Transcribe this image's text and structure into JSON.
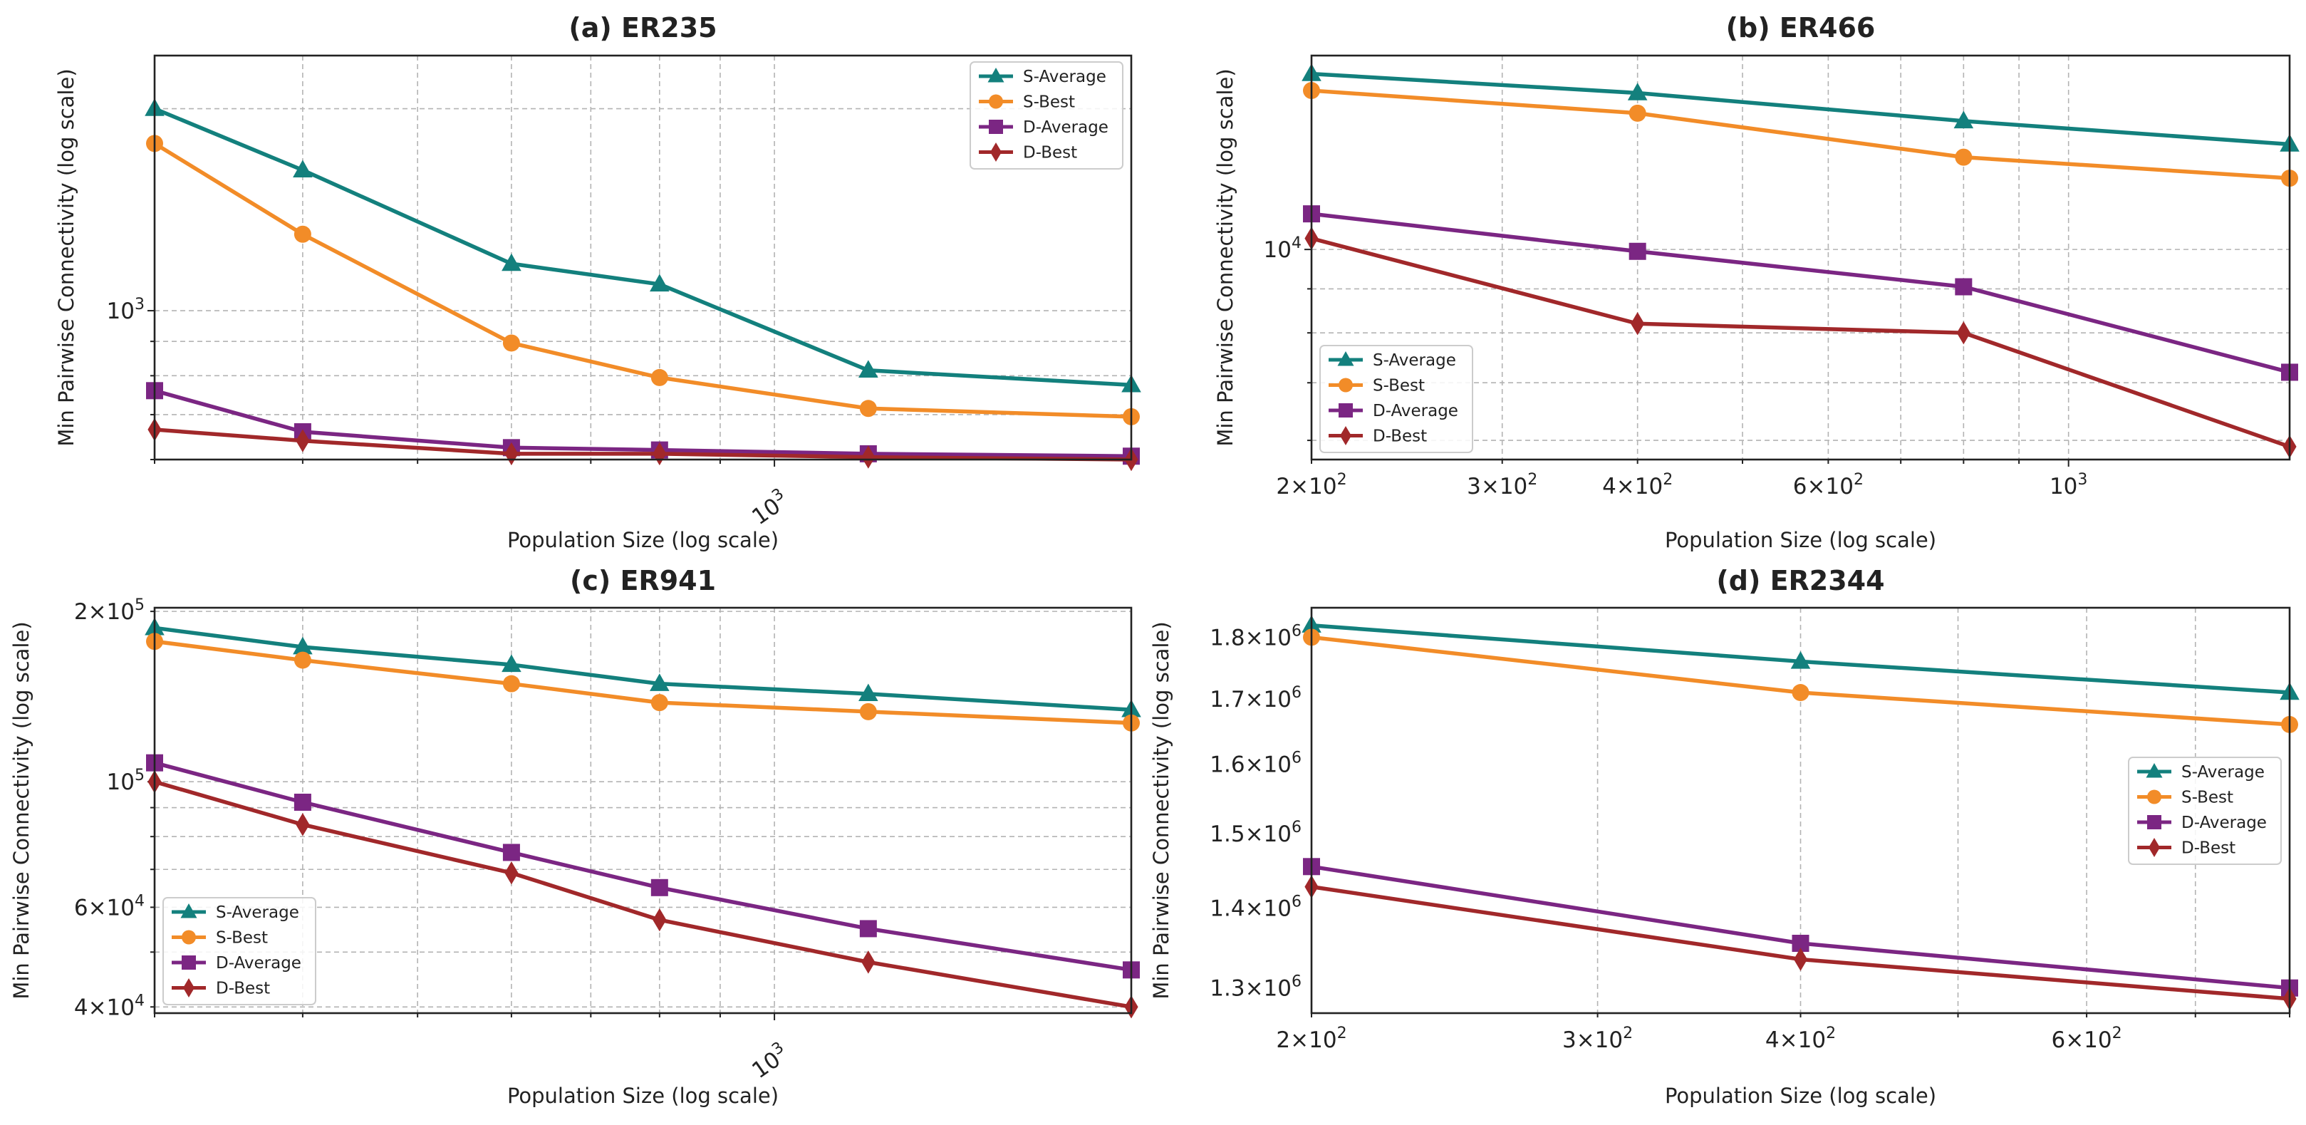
{
  "colors": {
    "S-Average": "#13807d",
    "S-Best": "#f28c28",
    "D-Average": "#7b2683",
    "D-Best": "#a1282a"
  },
  "chart_data": [
    {
      "type": "line",
      "title": "(a) ER235",
      "xlabel": "Population Size (log scale)",
      "ylabel": "Min Pairwise Connectivity (log scale)",
      "xscale": "log",
      "yscale": "log",
      "xlim": [
        300,
        2000
      ],
      "ylim": [
        600,
        2400
      ],
      "grid": true,
      "legend": "top-right",
      "x": [
        300,
        400,
        600,
        800,
        1200,
        2000
      ],
      "series": [
        {
          "name": "S-Average",
          "marker": "triangle",
          "values": [
            2000,
            1620,
            1175,
            1095,
            815,
            775
          ]
        },
        {
          "name": "S-Best",
          "marker": "circle",
          "values": [
            1775,
            1300,
            895,
            795,
            715,
            695
          ]
        },
        {
          "name": "D-Average",
          "marker": "square",
          "values": [
            760,
            660,
            625,
            620,
            612,
            607
          ]
        },
        {
          "name": "D-Best",
          "marker": "diamond",
          "values": [
            665,
            640,
            612,
            612,
            605,
            600
          ]
        }
      ],
      "xticks": [
        {
          "value": 1000,
          "base": "10",
          "exp": "3"
        }
      ],
      "yticks": [
        {
          "value": 1000,
          "base": "10",
          "exp": "3"
        }
      ]
    },
    {
      "type": "line",
      "title": "(b) ER466",
      "xlabel": "Population Size (log scale)",
      "ylabel": "Min Pairwise Connectivity (log scale)",
      "xscale": "log",
      "yscale": "log",
      "xlim": [
        200,
        1600
      ],
      "ylim": [
        5700,
        16800
      ],
      "grid": true,
      "legend": "bottom-left",
      "x": [
        200,
        400,
        800,
        1600
      ],
      "series": [
        {
          "name": "S-Average",
          "marker": "triangle",
          "values": [
            16000,
            15200,
            14100,
            13250
          ]
        },
        {
          "name": "S-Best",
          "marker": "circle",
          "values": [
            15300,
            14400,
            12800,
            12100
          ]
        },
        {
          "name": "D-Average",
          "marker": "square",
          "values": [
            11000,
            9950,
            9050,
            7200
          ]
        },
        {
          "name": "D-Best",
          "marker": "diamond",
          "values": [
            10300,
            8200,
            8000,
            5900
          ]
        }
      ],
      "xticks": [
        {
          "value": 200,
          "mant": "2",
          "base": "10",
          "exp": "2"
        },
        {
          "value": 300,
          "mant": "3",
          "base": "10",
          "exp": "2"
        },
        {
          "value": 400,
          "mant": "4",
          "base": "10",
          "exp": "2"
        },
        {
          "value": 600,
          "mant": "6",
          "base": "10",
          "exp": "2"
        },
        {
          "value": 1000,
          "base": "10",
          "exp": "3"
        }
      ],
      "yticks": [
        {
          "value": 10000,
          "base": "10",
          "exp": "4"
        }
      ]
    },
    {
      "type": "line",
      "title": "(c) ER941",
      "xlabel": "Population Size (log scale)",
      "ylabel": "Min Pairwise Connectivity (log scale)",
      "xscale": "log",
      "yscale": "log",
      "xlim": [
        300,
        2000
      ],
      "ylim": [
        39000,
        203000
      ],
      "grid": true,
      "legend": "bottom-left",
      "x": [
        300,
        400,
        600,
        800,
        1200,
        2000
      ],
      "series": [
        {
          "name": "S-Average",
          "marker": "triangle",
          "values": [
            187000,
            173000,
            161000,
            149000,
            143000,
            134000
          ]
        },
        {
          "name": "S-Best",
          "marker": "circle",
          "values": [
            177000,
            164000,
            149000,
            138000,
            133000,
            127000
          ]
        },
        {
          "name": "D-Average",
          "marker": "square",
          "values": [
            108000,
            92000,
            75000,
            65000,
            55000,
            46500
          ]
        },
        {
          "name": "D-Best",
          "marker": "diamond",
          "values": [
            100000,
            84000,
            69000,
            57000,
            48000,
            40000
          ]
        }
      ],
      "xticks": [
        {
          "value": 1000,
          "base": "10",
          "exp": "3"
        }
      ],
      "yticks": [
        {
          "value": 200000,
          "mant": "2",
          "base": "10",
          "exp": "5"
        },
        {
          "value": 100000,
          "base": "10",
          "exp": "5"
        },
        {
          "value": 60000,
          "mant": "6",
          "base": "10",
          "exp": "4"
        },
        {
          "value": 40000,
          "mant": "4",
          "base": "10",
          "exp": "4"
        }
      ]
    },
    {
      "type": "line",
      "title": "(d) ER2344",
      "xlabel": "Population Size (log scale)",
      "ylabel": "Min Pairwise Connectivity (log scale)",
      "xscale": "log",
      "yscale": "log",
      "xlim": [
        200,
        800
      ],
      "ylim": [
        1270000,
        1850000
      ],
      "grid": true,
      "legend": "center-right",
      "x": [
        200,
        400,
        800
      ],
      "series": [
        {
          "name": "S-Average",
          "marker": "triangle",
          "values": [
            1820000,
            1760000,
            1710000
          ]
        },
        {
          "name": "S-Best",
          "marker": "circle",
          "values": [
            1800000,
            1710000,
            1660000
          ]
        },
        {
          "name": "D-Average",
          "marker": "square",
          "values": [
            1455000,
            1355000,
            1300000
          ]
        },
        {
          "name": "D-Best",
          "marker": "diamond",
          "values": [
            1428000,
            1335000,
            1287000
          ]
        }
      ],
      "xticks": [
        {
          "value": 200,
          "mant": "2",
          "base": "10",
          "exp": "2"
        },
        {
          "value": 300,
          "mant": "3",
          "base": "10",
          "exp": "2"
        },
        {
          "value": 400,
          "mant": "4",
          "base": "10",
          "exp": "2"
        },
        {
          "value": 600,
          "mant": "6",
          "base": "10",
          "exp": "2"
        }
      ],
      "yticks": [
        {
          "value": 1800000,
          "mant": "1.8",
          "base": "10",
          "exp": "6"
        },
        {
          "value": 1700000,
          "mant": "1.7",
          "base": "10",
          "exp": "6"
        },
        {
          "value": 1600000,
          "mant": "1.6",
          "base": "10",
          "exp": "6"
        },
        {
          "value": 1500000,
          "mant": "1.5",
          "base": "10",
          "exp": "6"
        },
        {
          "value": 1400000,
          "mant": "1.4",
          "base": "10",
          "exp": "6"
        },
        {
          "value": 1300000,
          "mant": "1.3",
          "base": "10",
          "exp": "6"
        }
      ]
    }
  ]
}
